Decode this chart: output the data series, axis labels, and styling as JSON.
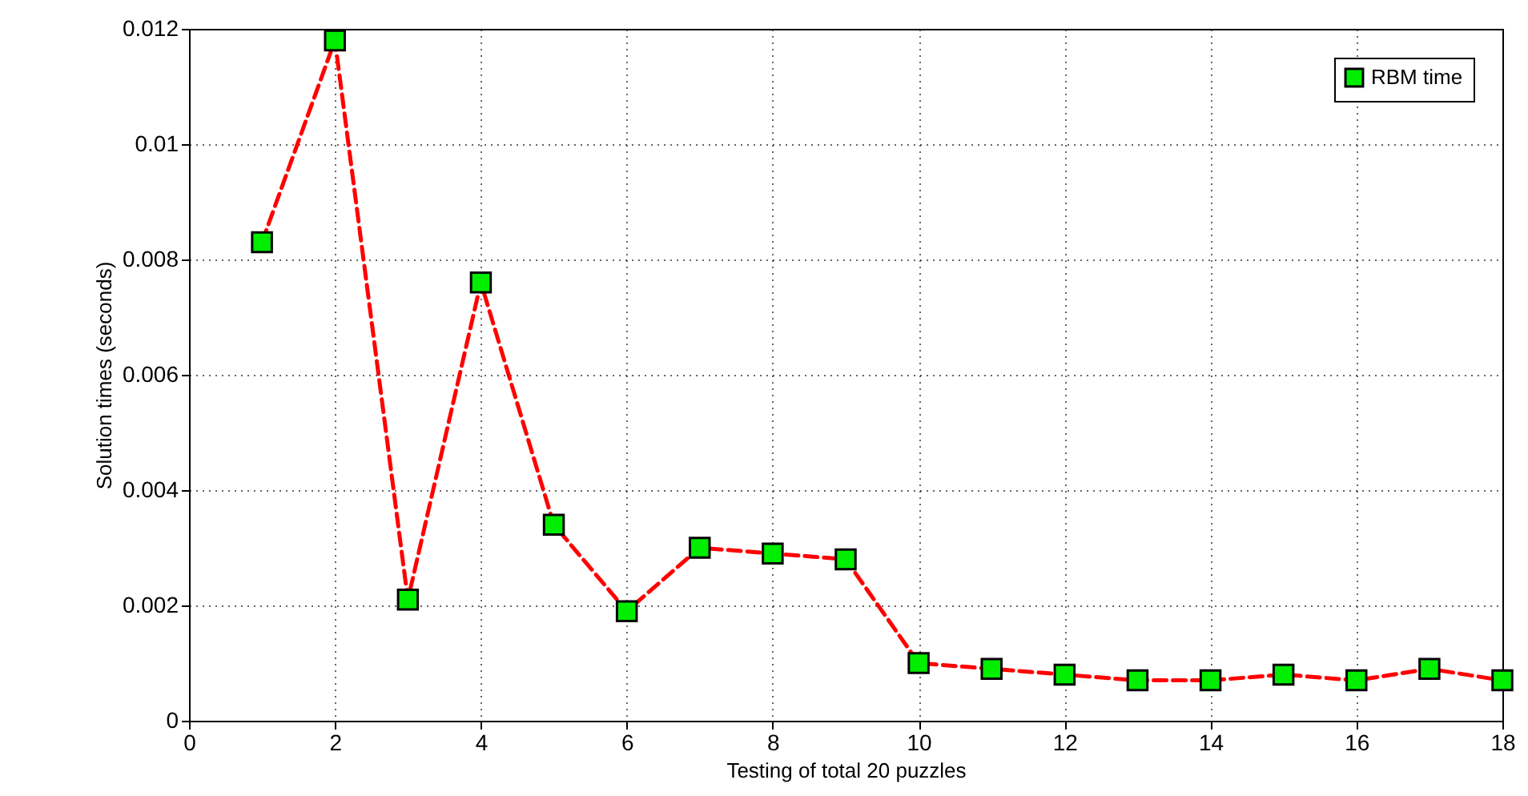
{
  "chart_data": {
    "type": "line",
    "xlabel": "Testing of total 20 puzzles",
    "ylabel": "Solution times (seconds)",
    "x": [
      1,
      2,
      3,
      4,
      5,
      6,
      7,
      8,
      9,
      10,
      11,
      12,
      13,
      14,
      15,
      16,
      17,
      18
    ],
    "series": [
      {
        "name": "RBM time",
        "color": "#ff0000",
        "values": [
          0.0083,
          0.0118,
          0.0021,
          0.0076,
          0.0034,
          0.0019,
          0.003,
          0.0029,
          0.0028,
          0.001,
          0.0009,
          0.0008,
          0.0007,
          0.0007,
          0.0008,
          0.0007,
          0.0009,
          0.0007
        ]
      }
    ],
    "xlim": [
      0,
      18
    ],
    "xticks": [
      0,
      2,
      4,
      6,
      8,
      10,
      12,
      14,
      16,
      18
    ],
    "ylim": [
      0,
      0.012
    ],
    "yticks": [
      0,
      0.002,
      0.004,
      0.006,
      0.008,
      0.01,
      0.012
    ],
    "grid": true,
    "legend": "top right",
    "marker": "square",
    "line_style": "dashed"
  }
}
